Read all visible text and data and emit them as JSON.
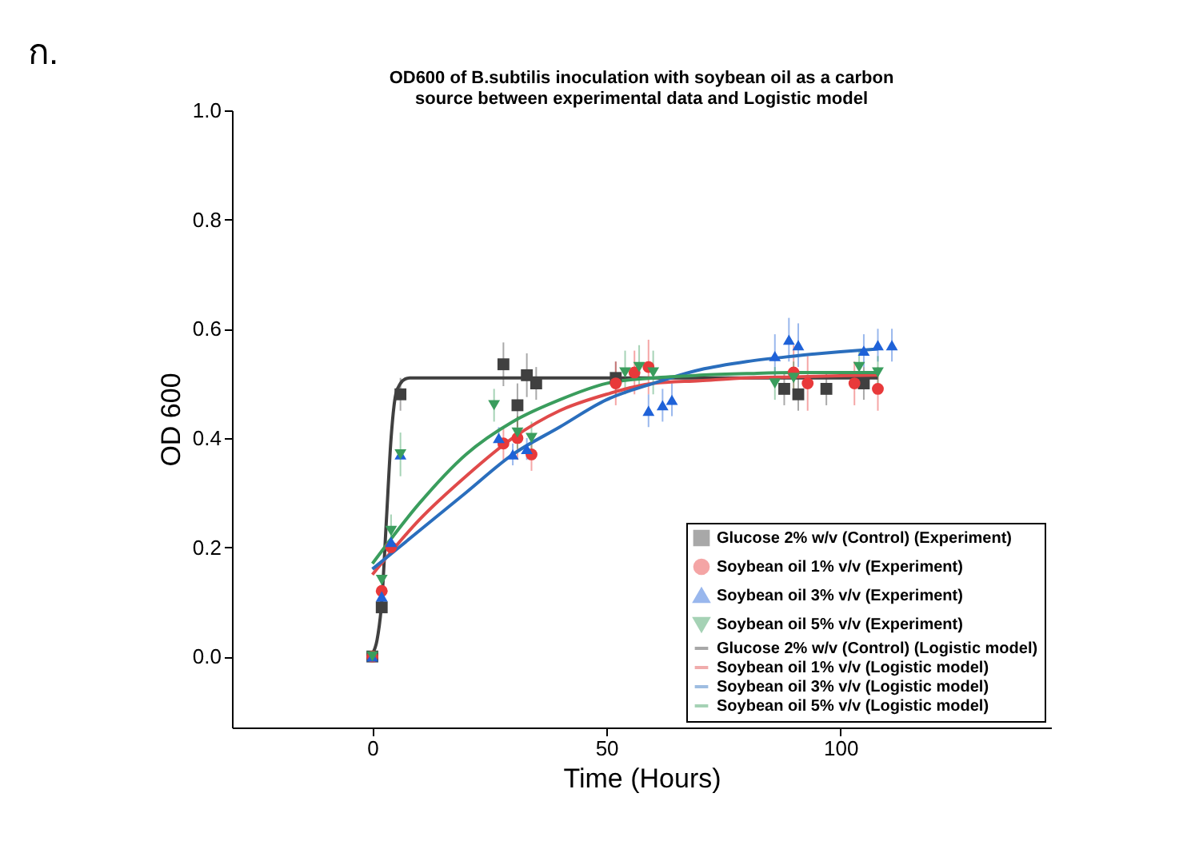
{
  "chart_data": {
    "type": "scatter",
    "title": [
      "OD600 of B.subtilis inoculation with soybean oil as a carbon",
      "source between experimental data and Logistic model"
    ],
    "xlabel": "Time (Hours)",
    "ylabel": "OD 600",
    "annotations": [
      "ก."
    ],
    "xlim": [
      -30,
      145
    ],
    "ylim": [
      -0.13,
      1.0
    ],
    "xticks": [
      0,
      50,
      100
    ],
    "yticks": [
      {
        "value": 0,
        "label": "0.0"
      },
      {
        "value": 0.2,
        "label": "0.2"
      },
      {
        "value": 0.4,
        "label": "0.4"
      },
      {
        "value": 0.6,
        "label": "0.6"
      },
      {
        "value": 0.8,
        "label": "0.8"
      },
      {
        "value": 1,
        "label": "1.0"
      }
    ],
    "grid": false,
    "legend": "bottom right",
    "series": [
      {
        "name": "Glucose 2% w/v (Control) (Experiment)",
        "type": "scatter",
        "marker": "square",
        "color": "#404040",
        "x": [
          0,
          2,
          4,
          6,
          28,
          33,
          35,
          31,
          52,
          55,
          88,
          91,
          97,
          105
        ],
        "values": [
          0,
          0.09,
          null,
          0.48,
          0.535,
          0.515,
          0.5,
          0.46,
          0.51,
          null,
          0.49,
          0.48,
          0.49,
          0.5
        ],
        "errors": [
          null,
          null,
          null,
          0.03,
          0.04,
          0.04,
          0.03,
          0.04,
          0.03,
          null,
          0.03,
          0.03,
          0.03,
          0.03
        ]
      },
      {
        "name": "Soybean oil 1% v/v (Experiment)",
        "type": "scatter",
        "marker": "circle",
        "color": "#e8393a",
        "x": [
          0,
          2,
          4,
          6,
          28,
          31,
          34,
          52,
          56,
          59,
          90,
          93,
          103,
          108
        ],
        "values": [
          0,
          0.12,
          0.2,
          null,
          0.39,
          0.4,
          0.37,
          0.5,
          0.52,
          0.53,
          0.52,
          0.5,
          0.5,
          0.49
        ],
        "errors": [
          null,
          null,
          null,
          null,
          0.03,
          0.04,
          0.03,
          0.04,
          0.04,
          0.05,
          0.05,
          0.05,
          0.04,
          0.04
        ]
      },
      {
        "name": "Soybean oil 3% v/v (Experiment)",
        "type": "scatter",
        "marker": "triangle-up",
        "color": "#1f62d8",
        "x": [
          0,
          2,
          4,
          6,
          27,
          30,
          33,
          59,
          62,
          64,
          86,
          89,
          91,
          105,
          108,
          111
        ],
        "values": [
          0,
          0.11,
          0.21,
          0.37,
          0.4,
          0.37,
          0.38,
          0.45,
          0.46,
          0.47,
          0.55,
          0.58,
          0.57,
          0.56,
          0.57,
          0.57
        ],
        "errors": [
          null,
          null,
          null,
          null,
          0.02,
          0.02,
          0.02,
          0.03,
          0.03,
          0.03,
          0.04,
          0.04,
          0.04,
          0.03,
          0.03,
          0.03
        ]
      },
      {
        "name": "Soybean oil 5% v/v (Experiment)",
        "type": "scatter",
        "marker": "triangle-down",
        "color": "#3a9d5d",
        "x": [
          0,
          2,
          4,
          6,
          26,
          31,
          34,
          54,
          57,
          60,
          86,
          90,
          104,
          108
        ],
        "values": [
          0,
          0.14,
          0.23,
          0.37,
          0.46,
          0.41,
          0.4,
          0.52,
          0.53,
          0.52,
          0.5,
          0.51,
          0.53,
          0.52
        ],
        "errors": [
          null,
          null,
          0.03,
          0.04,
          0.03,
          0.03,
          0.03,
          0.04,
          0.04,
          0.04,
          0.03,
          0.03,
          0.03,
          0.03
        ]
      },
      {
        "name": "Glucose 2% w/v (Control) (Logistic model)",
        "type": "line",
        "color": "#404040",
        "x": [
          0,
          1,
          2,
          3,
          4,
          5,
          6,
          7,
          8,
          10,
          20,
          40,
          60,
          80,
          100,
          108
        ],
        "values": [
          0.005,
          0.03,
          0.1,
          0.25,
          0.4,
          0.48,
          0.5,
          0.508,
          0.51,
          0.51,
          0.51,
          0.51,
          0.51,
          0.51,
          0.51,
          0.51
        ]
      },
      {
        "name": "Soybean oil 1% v/v (Logistic model)",
        "type": "line",
        "color": "#e04a4a",
        "x": [
          0,
          10,
          20,
          30,
          40,
          50,
          60,
          70,
          80,
          90,
          100,
          108
        ],
        "values": [
          0.15,
          0.25,
          0.33,
          0.4,
          0.45,
          0.48,
          0.5,
          0.505,
          0.51,
          0.512,
          0.514,
          0.515
        ]
      },
      {
        "name": "Soybean oil 3% v/v (Logistic model)",
        "type": "line",
        "color": "#2a6ebd",
        "x": [
          0,
          10,
          20,
          30,
          40,
          50,
          60,
          70,
          80,
          90,
          100,
          108
        ],
        "values": [
          0.16,
          0.23,
          0.3,
          0.37,
          0.42,
          0.47,
          0.5,
          0.525,
          0.54,
          0.55,
          0.558,
          0.563
        ]
      },
      {
        "name": "Soybean oil 5% v/v (Logistic model)",
        "type": "line",
        "color": "#3a9d5d",
        "x": [
          0,
          10,
          20,
          30,
          40,
          50,
          60,
          70,
          80,
          90,
          100,
          108
        ],
        "values": [
          0.17,
          0.28,
          0.37,
          0.43,
          0.47,
          0.5,
          0.51,
          0.515,
          0.518,
          0.52,
          0.52,
          0.52
        ]
      }
    ]
  }
}
